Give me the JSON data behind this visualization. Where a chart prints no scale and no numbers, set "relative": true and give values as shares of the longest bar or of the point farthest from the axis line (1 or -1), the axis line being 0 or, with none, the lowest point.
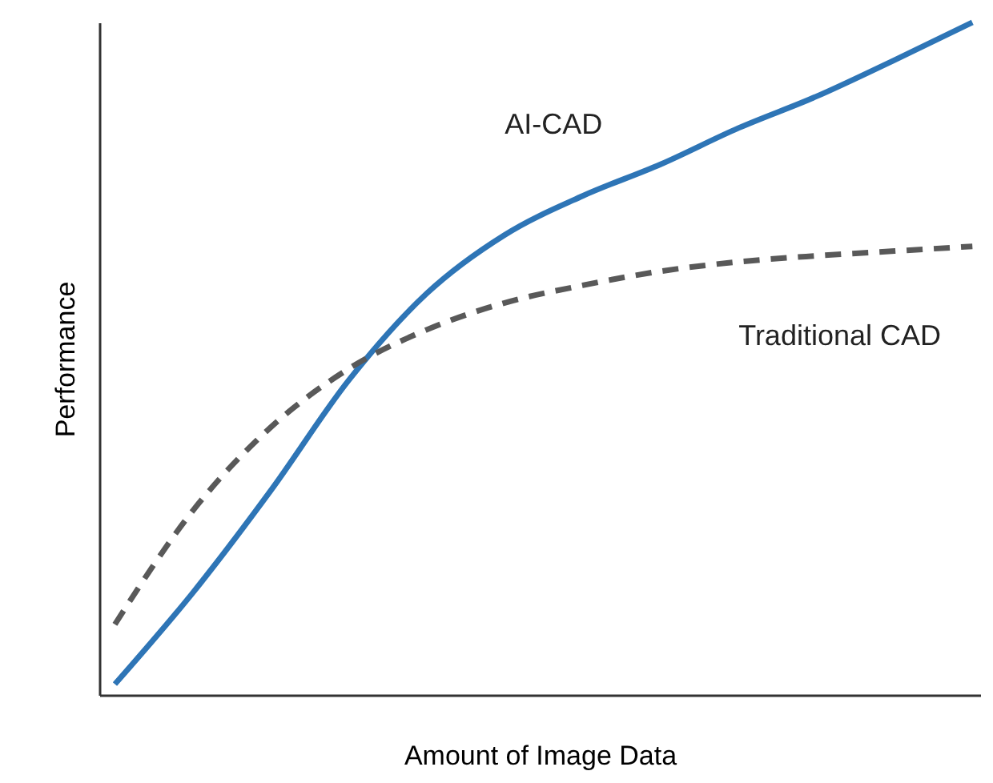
{
  "chart_data": {
    "type": "line",
    "relative": true,
    "xlabel": "Amount of Image Data",
    "ylabel": "Performance",
    "legend": false,
    "categories": [
      null,
      null,
      null,
      null,
      null,
      null,
      null,
      null,
      null,
      null,
      null,
      null
    ],
    "series": [
      {
        "name": "AI-CAD",
        "color": "#2e75b6",
        "line_style": "solid",
        "values": [
          0.016,
          0.152,
          0.304,
          0.468,
          0.597,
          0.684,
          0.742,
          0.789,
          0.843,
          0.89,
          0.944,
          1
        ]
      },
      {
        "name": "Traditional CAD",
        "color": "#595959",
        "line_style": "dashed",
        "values": [
          0.105,
          0.274,
          0.398,
          0.485,
          0.543,
          0.583,
          0.609,
          0.63,
          0.644,
          0.653,
          0.66,
          0.667
        ]
      }
    ]
  }
}
